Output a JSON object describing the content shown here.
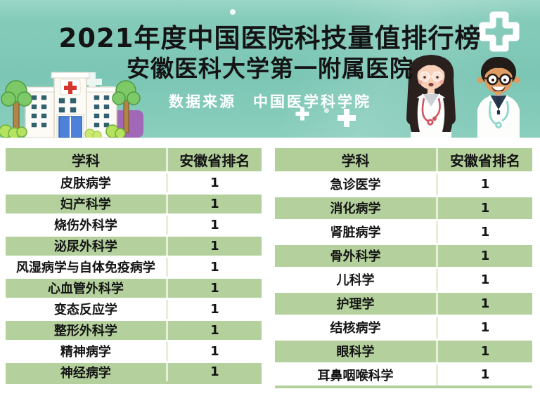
{
  "header": {
    "title_line1": "2021年度中国医院科技量值排行榜",
    "title_line2": "安徽医科大学第一附属医院",
    "subtitle": "数据来源　中国医学科学院"
  },
  "tables": {
    "columns": [
      "学科",
      "安徽省排名"
    ],
    "left": {
      "rows": [
        {
          "subject": "皮肤病学",
          "rank": "1"
        },
        {
          "subject": "妇产科学",
          "rank": "1"
        },
        {
          "subject": "烧伤外科学",
          "rank": "1"
        },
        {
          "subject": "泌尿外科学",
          "rank": "1"
        },
        {
          "subject": "风湿病学与自体免疫病学",
          "rank": "1"
        },
        {
          "subject": "心血管外科学",
          "rank": "1"
        },
        {
          "subject": "变态反应学",
          "rank": "1"
        },
        {
          "subject": "整形外科学",
          "rank": "1"
        },
        {
          "subject": "精神病学",
          "rank": "1"
        },
        {
          "subject": "神经病学",
          "rank": "1"
        }
      ]
    },
    "right": {
      "rows": [
        {
          "subject": "急诊医学",
          "rank": "1"
        },
        {
          "subject": "消化病学",
          "rank": "1"
        },
        {
          "subject": "肾脏病学",
          "rank": "1"
        },
        {
          "subject": "骨外科学",
          "rank": "1"
        },
        {
          "subject": "儿科学",
          "rank": "1"
        },
        {
          "subject": "护理学",
          "rank": "1"
        },
        {
          "subject": "结核病学",
          "rank": "1"
        },
        {
          "subject": "眼科学",
          "rank": "1"
        },
        {
          "subject": "耳鼻咽喉科学",
          "rank": "1"
        }
      ]
    }
  },
  "colors": {
    "banner_teal": "#7cc6b5",
    "table_green": "#b4d19d",
    "title_text": "#141414",
    "subtitle_text": "#ffffff",
    "cross_red": "#d5372f",
    "door_blue": "#4d82d8",
    "accent_purple": "#a168b8"
  }
}
